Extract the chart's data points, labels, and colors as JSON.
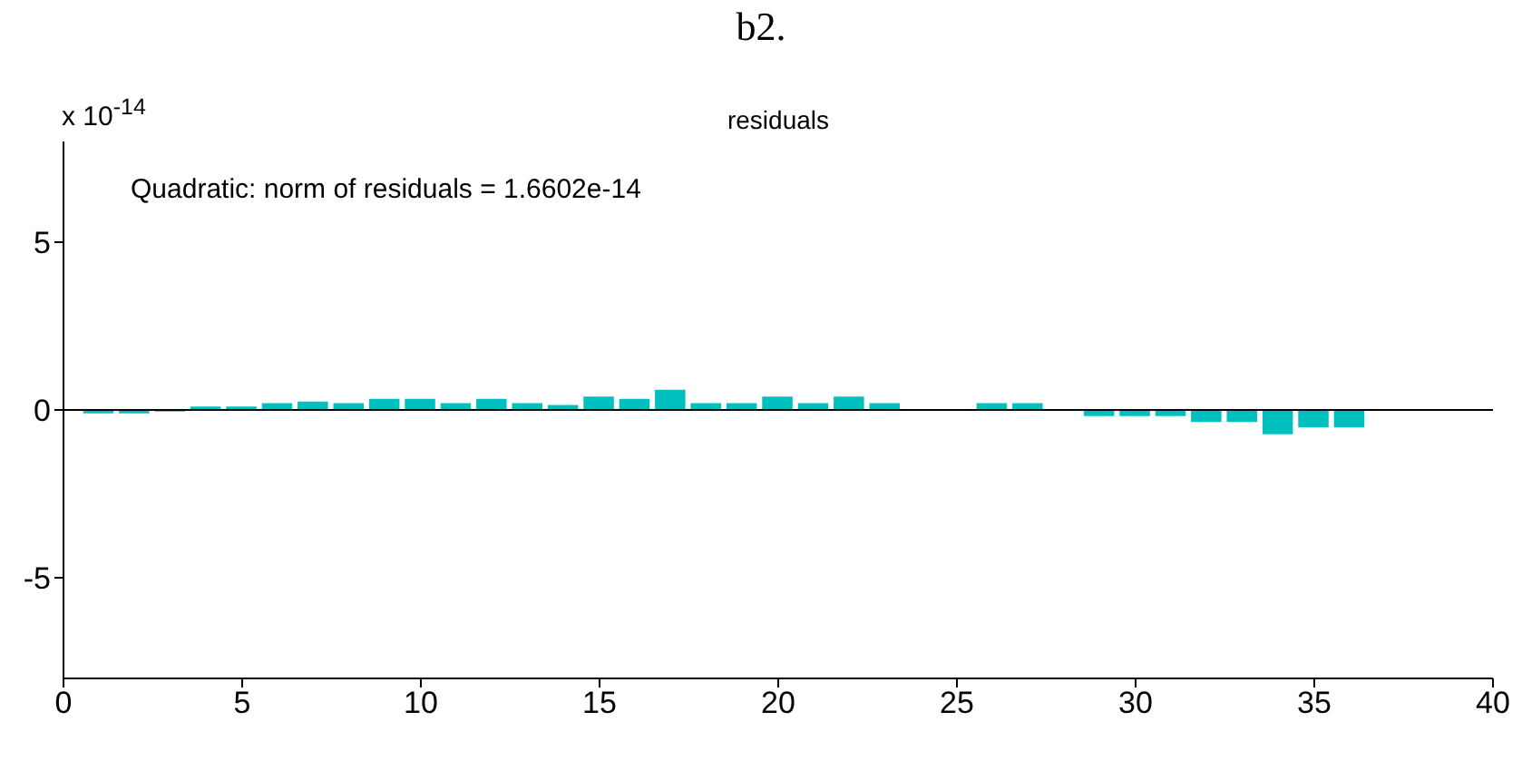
{
  "chart_data": {
    "type": "bar",
    "title": "b2.",
    "subtitle": "residuals",
    "annotations": [
      "x 10$^{-14}$",
      "Quadratic: norm of residuals = 1.6602e-14"
    ],
    "x": [
      1,
      2,
      3,
      4,
      5,
      6,
      7,
      8,
      9,
      10,
      11,
      12,
      13,
      14,
      15,
      16,
      17,
      18,
      19,
      20,
      21,
      22,
      23,
      24,
      25,
      26,
      27,
      28,
      29,
      30,
      31,
      32,
      33,
      34,
      35,
      36
    ],
    "values": [
      -0.1,
      -0.1,
      -0.05,
      0.1,
      0.1,
      0.2,
      0.25,
      0.2,
      0.33,
      0.33,
      0.2,
      0.33,
      0.2,
      0.15,
      0.4,
      0.33,
      0.6,
      0.2,
      0.2,
      0.4,
      0.2,
      0.4,
      0.2,
      null,
      null,
      0.2,
      0.2,
      null,
      -0.18,
      -0.18,
      -0.18,
      -0.36,
      -0.36,
      -0.72,
      -0.52,
      -0.52
    ],
    "color": "#00bfbf",
    "xlim": [
      0,
      40
    ],
    "xticks": [
      0,
      5,
      10,
      15,
      20,
      25,
      30,
      35,
      40
    ],
    "ylim": [
      -8,
      8
    ],
    "yticks": [
      -5,
      0,
      5
    ],
    "ref_lines": [
      {
        "axis": "y",
        "value": 0,
        "color": "#000000"
      }
    ]
  }
}
